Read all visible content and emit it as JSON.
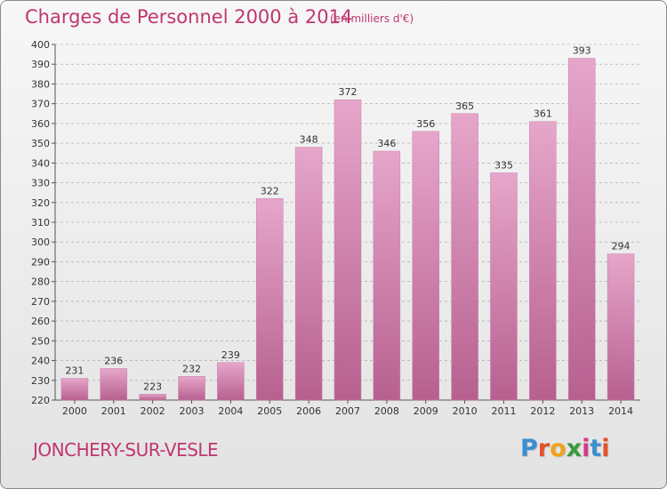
{
  "header": {
    "title": "Charges de Personnel 2000 à 2014",
    "unit_note": "(en milliers d'€)"
  },
  "footer": {
    "commune": "JONCHERY-SUR-VESLE",
    "logo_letters": [
      "P",
      "r",
      "o",
      "x",
      "i",
      "t",
      "i"
    ],
    "logo_colors": [
      "#3a8fd0",
      "#e4502b",
      "#f0a21c",
      "#3a9a3a",
      "#d33a8a",
      "#3a8fd0",
      "#e4502b"
    ]
  },
  "colors": {
    "title": "#c0366e",
    "bar_light": "#e6a6ca",
    "bar_dark": "#b7608f",
    "grid": "#a0a0a0",
    "axis": "#555555"
  },
  "chart_data": {
    "type": "bar",
    "title": "Charges de Personnel 2000 à 2014",
    "subtitle": "(en milliers d'€)",
    "categories": [
      "2000",
      "2001",
      "2002",
      "2003",
      "2004",
      "2005",
      "2006",
      "2007",
      "2008",
      "2009",
      "2010",
      "2011",
      "2012",
      "2013",
      "2014"
    ],
    "values": [
      231,
      236,
      223,
      232,
      239,
      322,
      348,
      372,
      346,
      356,
      365,
      335,
      361,
      393,
      294
    ],
    "ylim": [
      220,
      400
    ],
    "ytick_step": 10,
    "xlabel": "",
    "ylabel": "",
    "grid": true,
    "data_labels": true
  }
}
